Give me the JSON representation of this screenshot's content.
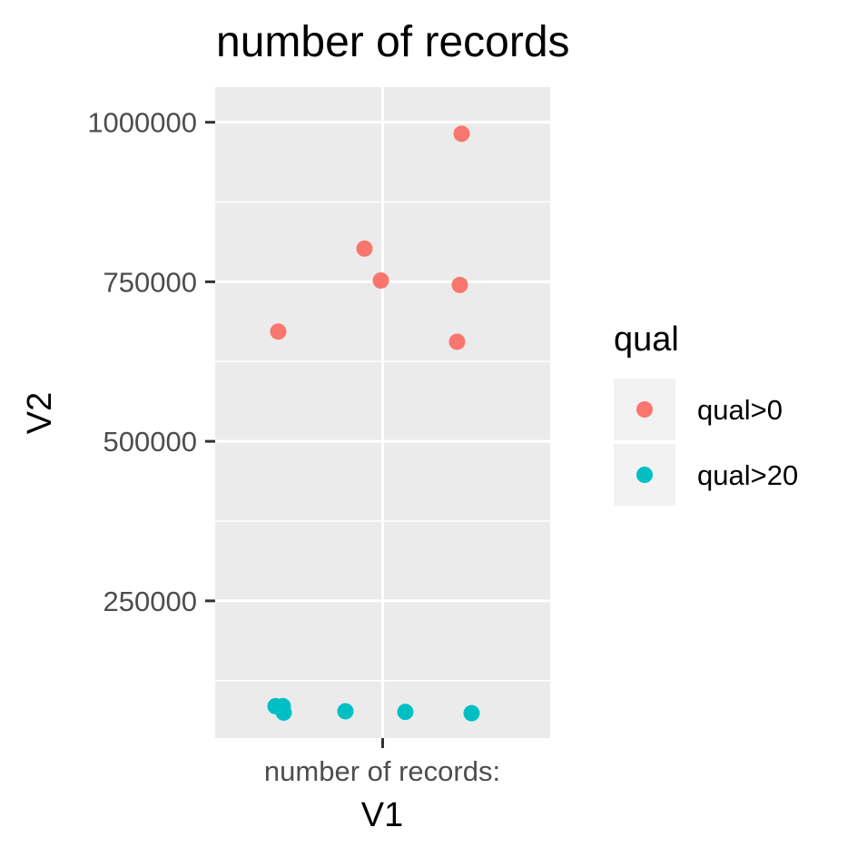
{
  "chart_data": {
    "type": "scatter",
    "title": "number of records",
    "xlabel": "V1",
    "ylabel": "V2",
    "x_categories": [
      "number of records:"
    ],
    "ylim": [
      35000,
      1055000
    ],
    "y_ticks": [
      {
        "value": 250000,
        "label": "250000"
      },
      {
        "value": 500000,
        "label": "500000"
      },
      {
        "value": 750000,
        "label": "750000"
      },
      {
        "value": 1000000,
        "label": "1000000"
      }
    ],
    "grid": true,
    "legend": {
      "title": "qual",
      "position": "right"
    },
    "series": [
      {
        "name": "qual>0",
        "color": "#F8766D",
        "points": [
          {
            "x": "number of records:",
            "y": 982000
          },
          {
            "x": "number of records:",
            "y": 802000
          },
          {
            "x": "number of records:",
            "y": 752000
          },
          {
            "x": "number of records:",
            "y": 745000
          },
          {
            "x": "number of records:",
            "y": 672000
          },
          {
            "x": "number of records:",
            "y": 656000
          }
        ]
      },
      {
        "name": "qual>20",
        "color": "#00BFC4",
        "points": [
          {
            "x": "number of records:",
            "y": 85000
          },
          {
            "x": "number of records:",
            "y": 85000
          },
          {
            "x": "number of records:",
            "y": 77000
          },
          {
            "x": "number of records:",
            "y": 76000
          },
          {
            "x": "number of records:",
            "y": 75000
          },
          {
            "x": "number of records:",
            "y": 74000
          }
        ]
      }
    ]
  }
}
